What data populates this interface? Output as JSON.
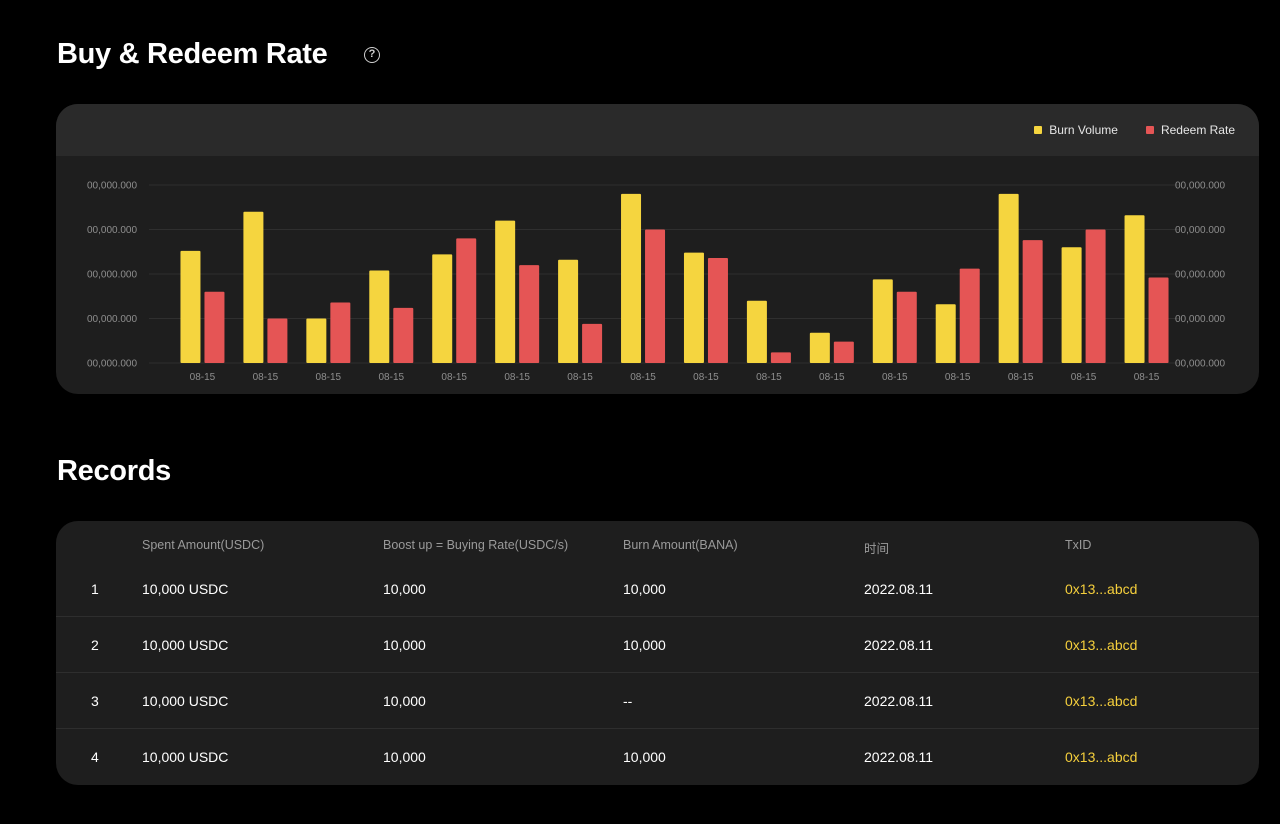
{
  "sections": {
    "chart_title": "Buy & Redeem Rate",
    "help_icon": "question-circle-icon",
    "records_title": "Records"
  },
  "legend": [
    {
      "label": "Burn Volume",
      "color": "#f5d53f"
    },
    {
      "label": "Redeem Rate",
      "color": "#e55555"
    }
  ],
  "chart_data": {
    "type": "bar",
    "categories": [
      "08-15",
      "08-15",
      "08-15",
      "08-15",
      "08-15",
      "08-15",
      "08-15",
      "08-15",
      "08-15",
      "08-15",
      "08-15",
      "08-15",
      "08-15",
      "08-15",
      "08-15",
      "08-15"
    ],
    "series": [
      {
        "name": "Burn Volume",
        "values": [
          63,
          85,
          25,
          52,
          61,
          80,
          58,
          95,
          62,
          35,
          17,
          47,
          33,
          95,
          65,
          83
        ],
        "color": "#f5d53f"
      },
      {
        "name": "Redeem Rate",
        "values": [
          40,
          25,
          34,
          31,
          70,
          55,
          22,
          75,
          59,
          6,
          12,
          40,
          53,
          69,
          75,
          48
        ],
        "color": "#e55555"
      }
    ],
    "ylim": [
      0,
      100
    ],
    "left_ticks": [
      "00,000.000",
      "00,000.000",
      "00,000.000",
      "00,000.000",
      "00,000.000"
    ],
    "right_ticks": [
      "00,000.000",
      "00,000.000",
      "00,000.000",
      "00,000.000",
      "00,000.000"
    ],
    "grid": true,
    "legend_position": "top-right"
  },
  "records": {
    "headers": [
      "",
      "Spent Amount(USDC)",
      "Boost up = Buying Rate(USDC/s)",
      "Burn Amount(BANA)",
      "时间",
      "TxID"
    ],
    "rows": [
      {
        "index": "1",
        "spent": "10,000 USDC",
        "rate": "10,000",
        "burn": "10,000",
        "time": "2022.08.11",
        "txid": "0x13...abcd"
      },
      {
        "index": "2",
        "spent": "10,000 USDC",
        "rate": "10,000",
        "burn": "10,000",
        "time": "2022.08.11",
        "txid": "0x13...abcd"
      },
      {
        "index": "3",
        "spent": "10,000 USDC",
        "rate": "10,000",
        "burn": "--",
        "time": "2022.08.11",
        "txid": "0x13...abcd"
      },
      {
        "index": "4",
        "spent": "10,000 USDC",
        "rate": "10,000",
        "burn": "10,000",
        "time": "2022.08.11",
        "txid": "0x13...abcd"
      }
    ]
  }
}
